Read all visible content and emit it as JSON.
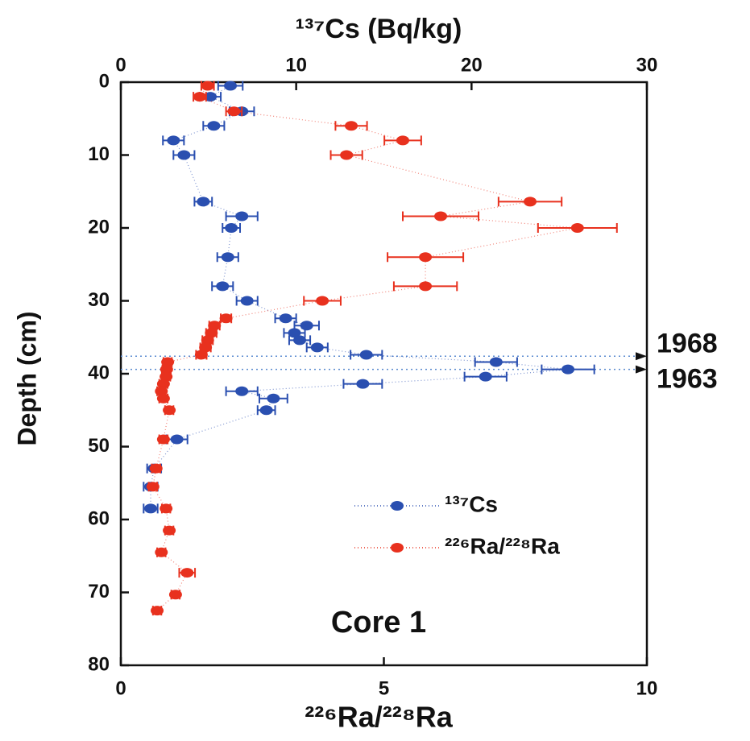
{
  "chart_data": {
    "type": "scatter",
    "x_label": "²²⁶Ra/²²⁸Ra",
    "x2_label": "¹³⁷Cs (Bq/kg)",
    "y_label": "Depth (cm)",
    "annotation": "Core 1",
    "xlim": [
      0,
      10
    ],
    "xticks": [
      0,
      5,
      10
    ],
    "x2lim": [
      0,
      30
    ],
    "x2ticks": [
      0,
      10,
      20,
      30
    ],
    "ylim": [
      80,
      0
    ],
    "yticks": [
      0,
      10,
      20,
      30,
      40,
      50,
      60,
      70,
      80
    ],
    "legend": "lower right",
    "reference_lines": [
      {
        "y": 37.6,
        "label": "1968"
      },
      {
        "y": 39.4,
        "label": "1963"
      }
    ],
    "series": [
      {
        "name": "¹³⁷Cs",
        "color": "#2a4fb0",
        "axis": "x2",
        "x": [
          6.25,
          5.1,
          6.9,
          5.3,
          3.0,
          3.6,
          4.7,
          6.9,
          6.3,
          6.1,
          5.8,
          7.2,
          9.4,
          10.6,
          9.9,
          10.2,
          11.2,
          14.0,
          21.4,
          25.5,
          20.8,
          13.8,
          6.9,
          8.7,
          8.3,
          3.2,
          1.9,
          1.7,
          1.7
        ],
        "y": [
          0.5,
          2,
          4,
          6,
          8,
          10,
          16.4,
          18.4,
          20,
          24,
          28,
          30,
          32.4,
          33.4,
          34.4,
          35.4,
          36.4,
          37.4,
          38.4,
          39.4,
          40.4,
          41.4,
          42.4,
          43.4,
          45,
          49,
          53,
          55.5,
          58.5
        ],
        "xerr": [
          0.7,
          0.6,
          0.7,
          0.6,
          0.6,
          0.6,
          0.5,
          0.9,
          0.5,
          0.6,
          0.6,
          0.6,
          0.6,
          0.7,
          0.6,
          0.6,
          0.6,
          0.9,
          1.2,
          1.5,
          1.2,
          1.1,
          0.9,
          0.8,
          0.5,
          0.6,
          0.4,
          0.4,
          0.4
        ]
      },
      {
        "name": "²²⁶Ra/²²⁸Ra",
        "color": "#e8311e",
        "axis": "x",
        "x": [
          1.65,
          1.5,
          2.15,
          4.38,
          5.36,
          4.29,
          7.78,
          6.08,
          8.68,
          5.79,
          5.79,
          3.83,
          2.0,
          1.78,
          1.72,
          1.65,
          1.61,
          1.53,
          0.89,
          0.87,
          0.86,
          0.81,
          0.77,
          0.81,
          0.92,
          0.81,
          0.67,
          0.61,
          0.86,
          0.92,
          0.77,
          1.26,
          1.04,
          0.69
        ],
        "y": [
          0.5,
          2,
          4,
          6,
          8,
          10,
          16.4,
          18.4,
          20,
          24,
          28,
          30,
          32.4,
          33.4,
          34.4,
          35.4,
          36.4,
          37.4,
          38.4,
          39.4,
          40.4,
          41.4,
          42.4,
          43.4,
          45,
          49,
          53,
          55.5,
          58.5,
          61.5,
          64.5,
          67.3,
          70.3,
          72.5
        ],
        "xerr": [
          0.12,
          0.12,
          0.15,
          0.3,
          0.35,
          0.3,
          0.6,
          0.72,
          0.75,
          0.72,
          0.6,
          0.35,
          0.1,
          0.1,
          0.1,
          0.1,
          0.1,
          0.1,
          0.08,
          0.08,
          0.08,
          0.08,
          0.08,
          0.08,
          0.08,
          0.08,
          0.08,
          0.08,
          0.08,
          0.08,
          0.08,
          0.15,
          0.08,
          0.08
        ]
      }
    ]
  }
}
